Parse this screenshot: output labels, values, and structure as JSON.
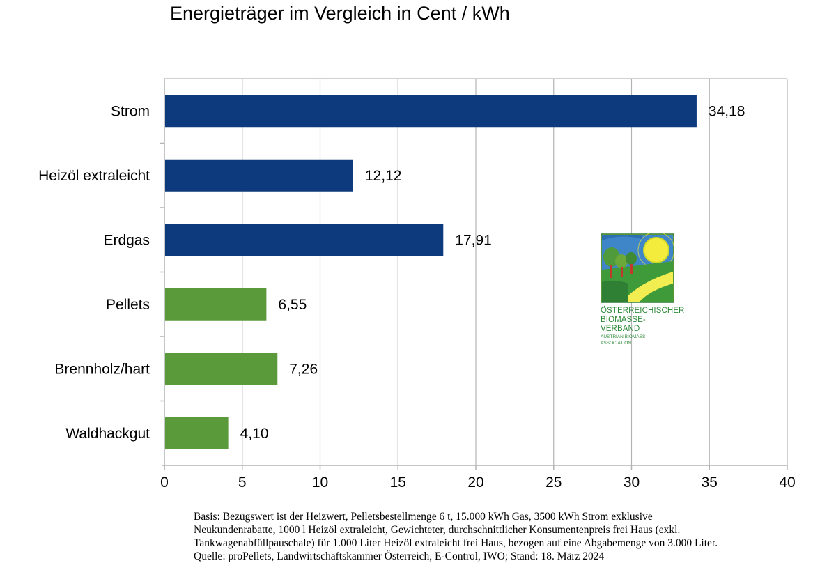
{
  "chart_data": {
    "type": "bar",
    "orientation": "horizontal",
    "title": "Energieträger im Vergleich in Cent / kWh",
    "categories": [
      "Strom",
      "Heizöl extraleicht",
      "Erdgas",
      "Pellets",
      "Brennholz/hart",
      "Waldhackgut"
    ],
    "values": [
      34.18,
      12.12,
      17.91,
      6.55,
      7.26,
      4.1
    ],
    "value_labels": [
      "34,18",
      "12,12",
      "17,91",
      "6,55",
      "7,26",
      "4,10"
    ],
    "bar_colors": [
      "#0d3a7c",
      "#0d3a7c",
      "#0d3a7c",
      "#5a9a3a",
      "#5a9a3a",
      "#5a9a3a"
    ],
    "xlim": [
      0,
      40
    ],
    "xticks": [
      0,
      5,
      10,
      15,
      20,
      25,
      30,
      35,
      40
    ],
    "xtick_labels": [
      "0",
      "5",
      "10",
      "15",
      "20",
      "25",
      "30",
      "35",
      "40"
    ],
    "grid": "vertical",
    "legend": "none"
  },
  "logo": {
    "line1": "Österreichischer",
    "line2": "Biomasse-Verband",
    "line3": "Austrian Biomass Association"
  },
  "footnote": {
    "lines": [
      "Basis: Bezugswert ist der Heizwert, Pelletsbestellmenge 6 t, 15.000 kWh Gas, 3500 kWh Strom exklusive",
      "Neukundenrabatte, 1000 l Heizöl extraleicht, Gewichteter, durchschnittlicher Konsumentenpreis frei Haus (exkl.",
      "Tankwagenabfüllpauschale) für 1.000 Liter Heizöl extraleicht frei Haus, bezogen auf eine Abgabemenge von 3.000 Liter.",
      "Quelle: proPellets, Landwirtschaftskammer Österreich, E-Control, IWO; Stand: 18. März 2024"
    ]
  }
}
